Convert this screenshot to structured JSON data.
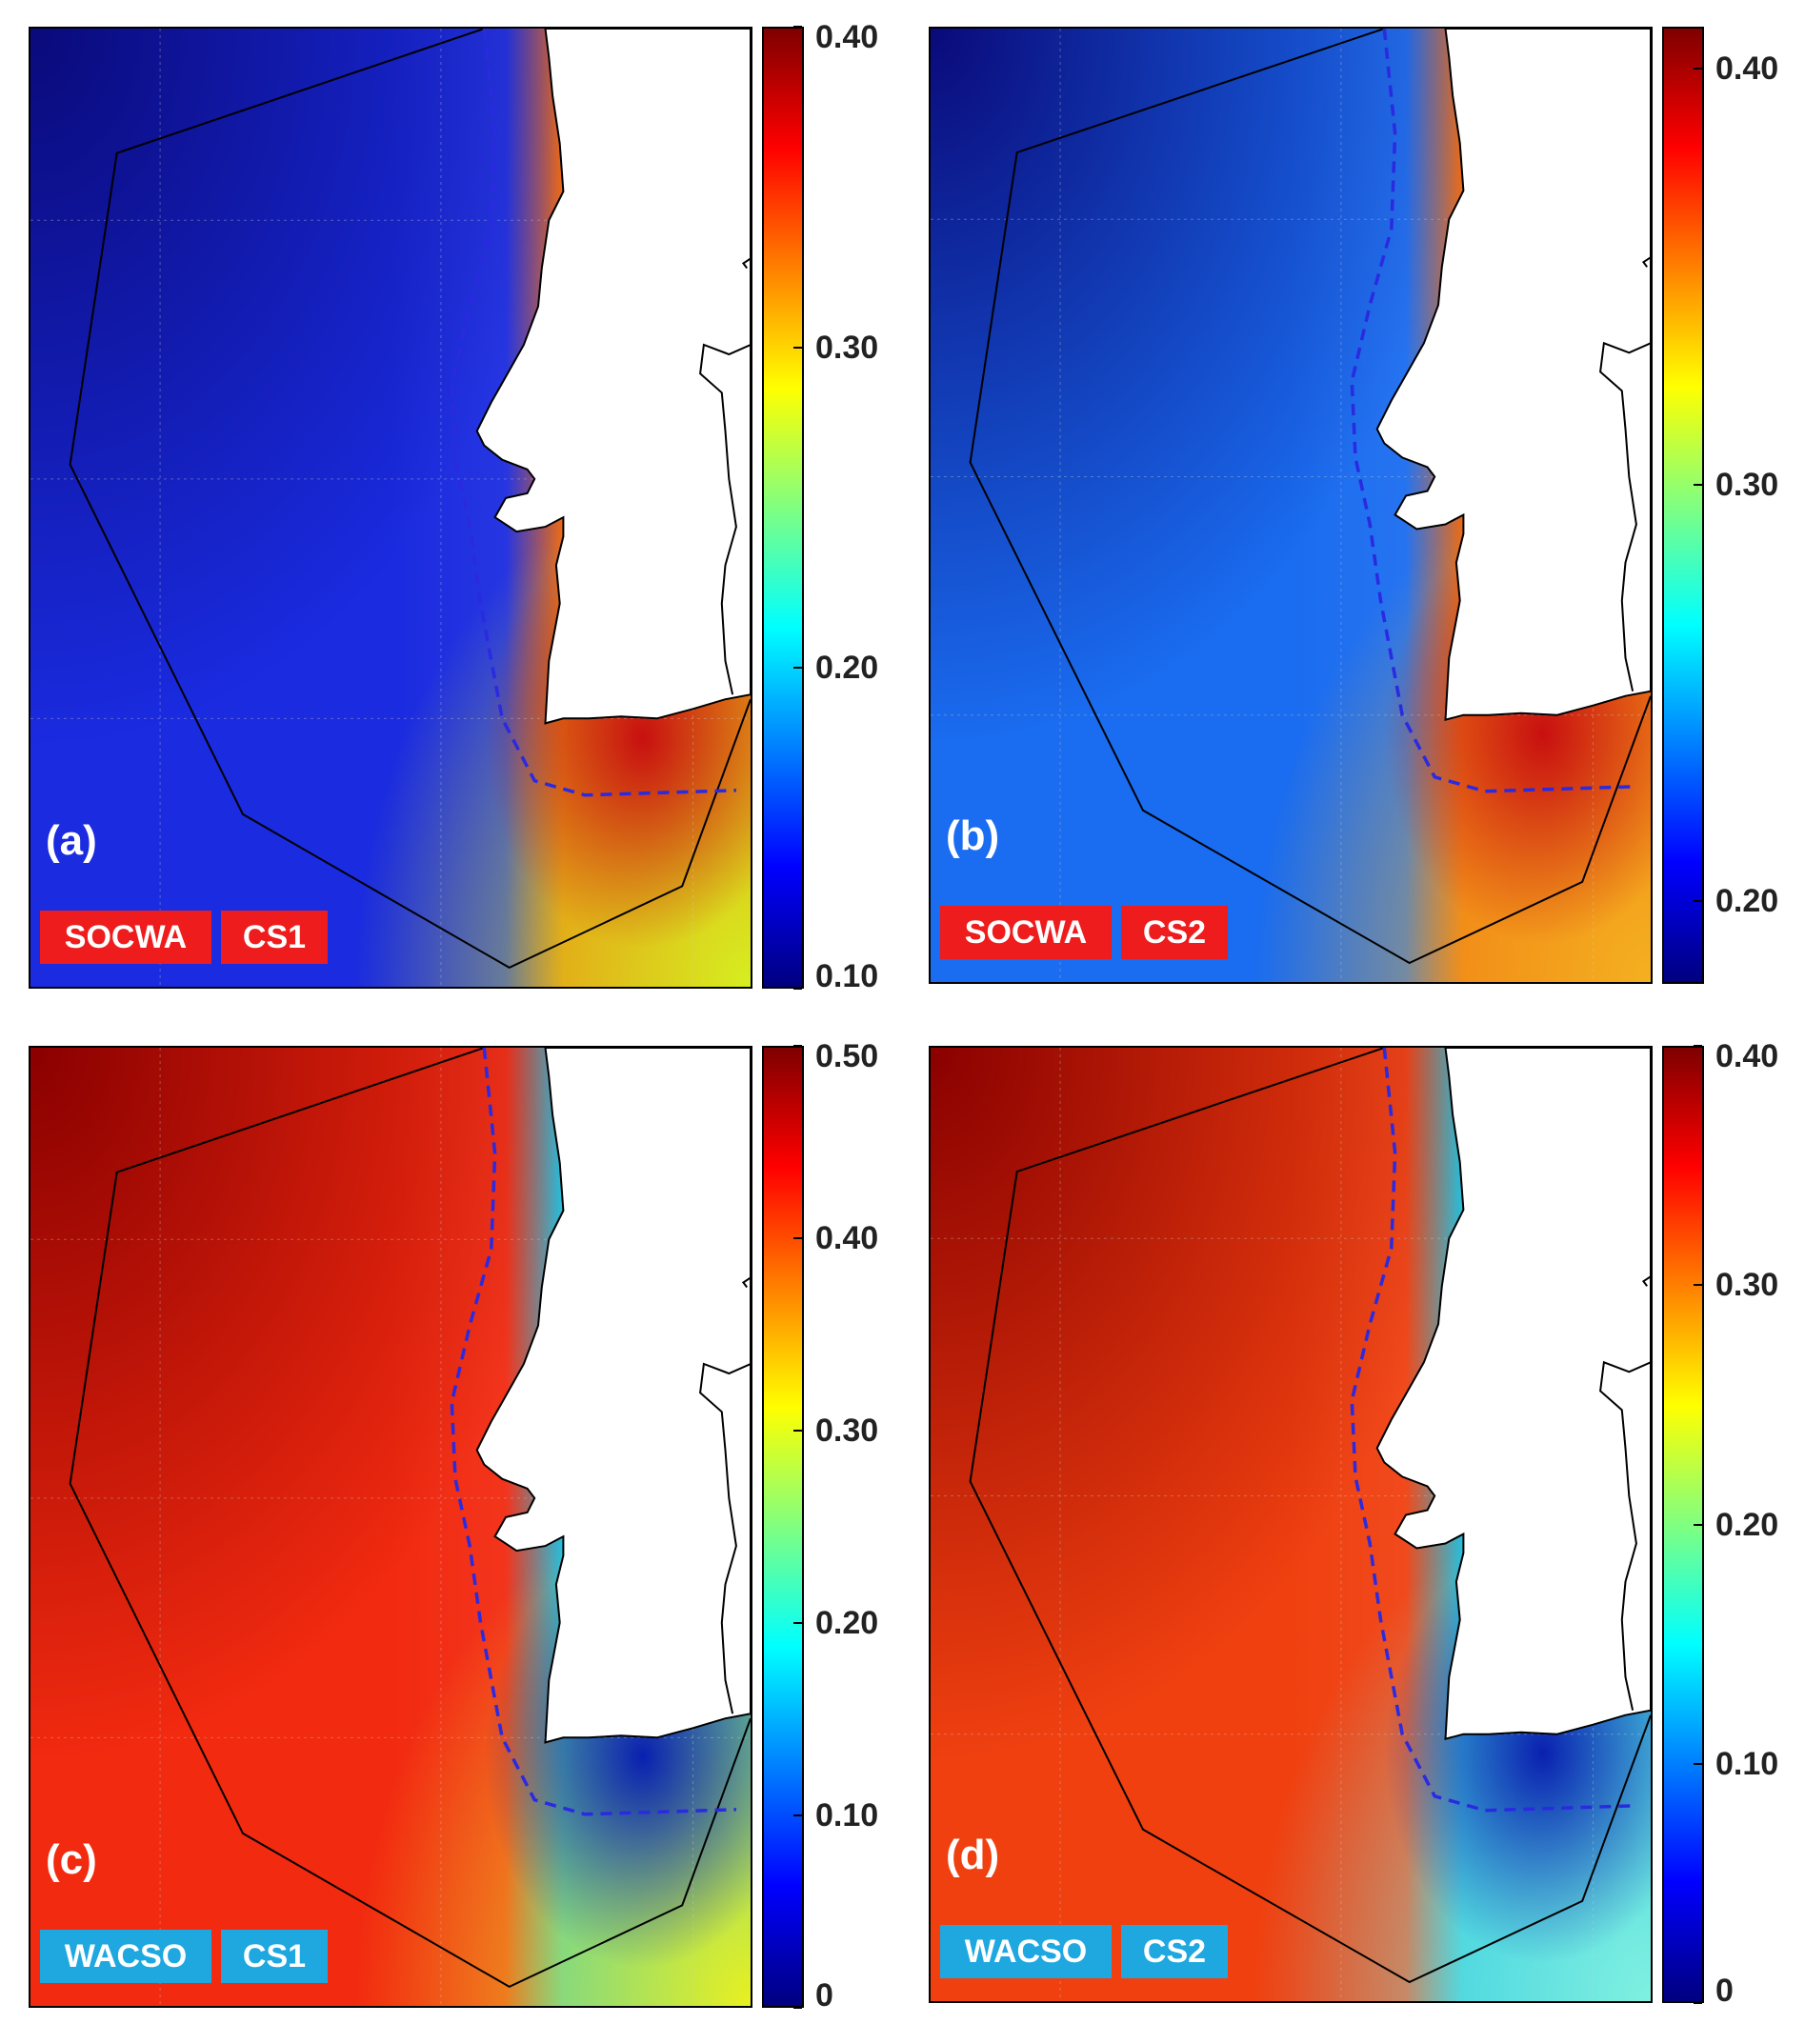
{
  "panels": [
    {
      "letter": "(a)",
      "tags": [
        "SOCWA",
        "CS1"
      ],
      "tag_color": "#ee1c1c",
      "colorbar_ticks": [
        "0.40",
        "0.30",
        "0.20",
        "0.10"
      ],
      "colorbar_values": [
        0.4,
        0.3,
        0.2,
        0.1
      ],
      "colorbar_range": [
        0.1,
        0.4
      ],
      "field": {
        "offshore": "#1a2be0",
        "far_northwest": "#0a0a7a",
        "coastal": "#f06a10",
        "gulf": "#c81010",
        "south_edge": "#d6ee20"
      }
    },
    {
      "letter": "(b)",
      "tags": [
        "SOCWA",
        "CS2"
      ],
      "tag_color": "#ee1c1c",
      "colorbar_ticks": [
        "0.40",
        "0.30",
        "0.20"
      ],
      "colorbar_values": [
        0.4,
        0.3,
        0.2
      ],
      "colorbar_range": [
        0.18,
        0.41
      ],
      "field": {
        "offshore": "#1a6cf0",
        "far_northwest": "#0a0a7a",
        "coastal": "#f06a10",
        "gulf": "#c81010",
        "south_edge": "#f4b020"
      }
    },
    {
      "letter": "(c)",
      "tags": [
        "WACSO",
        "CS1"
      ],
      "tag_color": "#1fa8e0",
      "colorbar_ticks": [
        "0.50",
        "0.40",
        "0.30",
        "0.20",
        "0.10",
        "0"
      ],
      "colorbar_values": [
        0.5,
        0.4,
        0.3,
        0.2,
        0.1,
        0
      ],
      "colorbar_range": [
        0,
        0.5
      ],
      "field": {
        "offshore": "#f22a10",
        "far_northwest": "#8a0000",
        "coastal": "#20c0e0",
        "gulf": "#0a20b0",
        "south_edge": "#e8f020"
      }
    },
    {
      "letter": "(d)",
      "tags": [
        "WACSO",
        "CS2"
      ],
      "tag_color": "#1fa8e0",
      "colorbar_ticks": [
        "0.40",
        "0.30",
        "0.20",
        "0.10",
        "0"
      ],
      "colorbar_values": [
        0.4,
        0.3,
        0.2,
        0.1,
        0
      ],
      "colorbar_range": [
        0,
        0.4
      ],
      "field": {
        "offshore": "#f04010",
        "far_northwest": "#8a0000",
        "coastal": "#20c0e0",
        "gulf": "#0a20b0",
        "south_edge": "#80f0e0"
      }
    }
  ],
  "colormap": "jet",
  "colors": {
    "coastline": "#000000",
    "domain_boundary": "#000000",
    "dashed_line": "#2a2ae0",
    "land": "#ffffff",
    "grid": "#cfcfcf"
  }
}
